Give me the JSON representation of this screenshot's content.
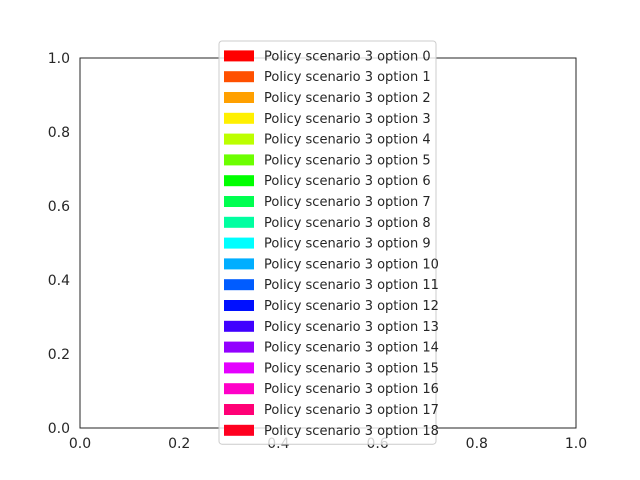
{
  "chart_data": {
    "type": "bar",
    "title": "",
    "xlabel": "",
    "ylabel": "",
    "xlim": [
      0.0,
      1.0
    ],
    "ylim": [
      0.0,
      1.0
    ],
    "xticks": [
      "0.0",
      "0.2",
      "0.4",
      "0.6",
      "0.8",
      "1.0"
    ],
    "yticks": [
      "0.0",
      "0.2",
      "0.4",
      "0.6",
      "0.8",
      "1.0"
    ],
    "grid": false,
    "legend_placement": "upper center",
    "series": [
      {
        "name": "Policy scenario 3 option 0",
        "color": "#ff0000"
      },
      {
        "name": "Policy scenario 3 option 1",
        "color": "#ff5000"
      },
      {
        "name": "Policy scenario 3 option 2",
        "color": "#ffa000"
      },
      {
        "name": "Policy scenario 3 option 3",
        "color": "#fff000"
      },
      {
        "name": "Policy scenario 3 option 4",
        "color": "#bcff00"
      },
      {
        "name": "Policy scenario 3 option 5",
        "color": "#6cff00"
      },
      {
        "name": "Policy scenario 3 option 6",
        "color": "#00ff00"
      },
      {
        "name": "Policy scenario 3 option 7",
        "color": "#00ff50"
      },
      {
        "name": "Policy scenario 3 option 8",
        "color": "#00ffa0"
      },
      {
        "name": "Policy scenario 3 option 9",
        "color": "#00ffff"
      },
      {
        "name": "Policy scenario 3 option 10",
        "color": "#00aeff"
      },
      {
        "name": "Policy scenario 3 option 11",
        "color": "#005cff"
      },
      {
        "name": "Policy scenario 3 option 12",
        "color": "#0010ff"
      },
      {
        "name": "Policy scenario 3 option 13",
        "color": "#4000ff"
      },
      {
        "name": "Policy scenario 3 option 14",
        "color": "#9200ff"
      },
      {
        "name": "Policy scenario 3 option 15",
        "color": "#e400ff"
      },
      {
        "name": "Policy scenario 3 option 16",
        "color": "#ff00c8"
      },
      {
        "name": "Policy scenario 3 option 17",
        "color": "#ff0076"
      },
      {
        "name": "Policy scenario 3 option 18",
        "color": "#ff0020"
      }
    ]
  }
}
